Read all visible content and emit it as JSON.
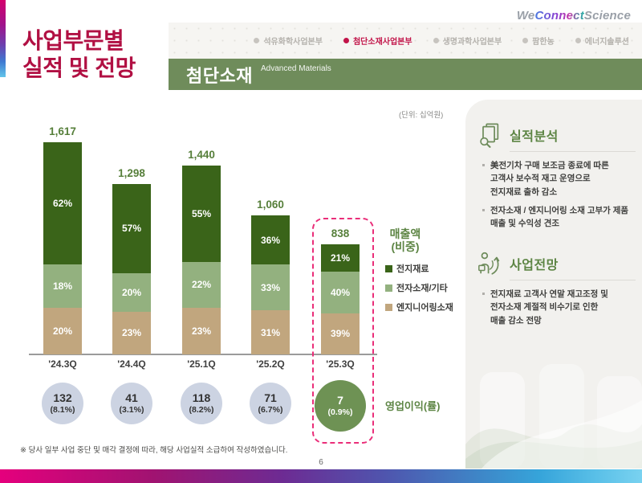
{
  "logo": {
    "part1": "We",
    "part2": "Connect",
    "part3": "Science"
  },
  "title": {
    "line1": "사업부문별",
    "line2": "실적 및 전망"
  },
  "nav": {
    "items": [
      {
        "label": "석유화학사업본부",
        "active": false
      },
      {
        "label": "첨단소재사업본부",
        "active": true
      },
      {
        "label": "생명과학사업본부",
        "active": false
      },
      {
        "label": "팜한농",
        "active": false
      },
      {
        "label": "에너지솔루션",
        "active": false
      }
    ]
  },
  "header": {
    "title": "첨단소재",
    "subtitle": "Advanced Materials"
  },
  "unit_label": "(단위: 십억원)",
  "chart_data": {
    "type": "bar",
    "stacked": true,
    "unit": "십억원",
    "categories": [
      "'24.3Q",
      "'24.4Q",
      "'25.1Q",
      "'25.2Q",
      "'25.3Q"
    ],
    "totals": [
      1617,
      1298,
      1440,
      1060,
      838
    ],
    "total_labels": [
      "1,617",
      "1,298",
      "1,440",
      "1,060",
      "838"
    ],
    "series": [
      {
        "name": "전지재료",
        "color": "#3a6419",
        "percents": [
          62,
          57,
          55,
          36,
          21
        ]
      },
      {
        "name": "전자소재/기타",
        "color": "#93b17f",
        "percents": [
          18,
          20,
          22,
          33,
          40
        ]
      },
      {
        "name": "엔지니어링소재",
        "color": "#c1a67e",
        "percents": [
          20,
          23,
          23,
          31,
          39
        ]
      }
    ],
    "highlight_index": 4,
    "legend_title": [
      "매출액",
      "(비중)"
    ],
    "operating_profit": {
      "label": "영업이익(률)",
      "values": [
        "132",
        "41",
        "118",
        "71",
        "7"
      ],
      "rates": [
        "(8.1%)",
        "(3.1%)",
        "(8.2%)",
        "(6.7%)",
        "(0.9%)"
      ]
    }
  },
  "analysis": {
    "title": "실적분석",
    "bullets": [
      "美전기차 구매 보조금 종료에 따른\n고객사 보수적 재고 운영으로\n전지재료 출하 감소",
      "전자소재 / 엔지니어링 소재 고부가 제품\n매출 및 수익성 견조"
    ]
  },
  "outlook": {
    "title": "사업전망",
    "bullets": [
      "전지재료 고객사 연말 재고조정 및\n전자소재 계절적 비수기로 인한\n매출 감소 전망"
    ]
  },
  "footnote": "※ 당사 일부 사업 중단 및 매각 결정에 따라, 해당 사업실적 소급하여 작성하였습니다.",
  "page_number": "6",
  "colors": {
    "accent_red": "#b11043",
    "nav_active": "#c21449",
    "header_green": "#6f8c5b",
    "dark_green": "#3a6419",
    "light_green": "#93b17f",
    "tan": "#c1a67e",
    "section_green": "#5d8544",
    "circle_gray": "#ccd3e2",
    "circle_green": "#6e9254",
    "highlight_pink": "#ea2e79"
  }
}
